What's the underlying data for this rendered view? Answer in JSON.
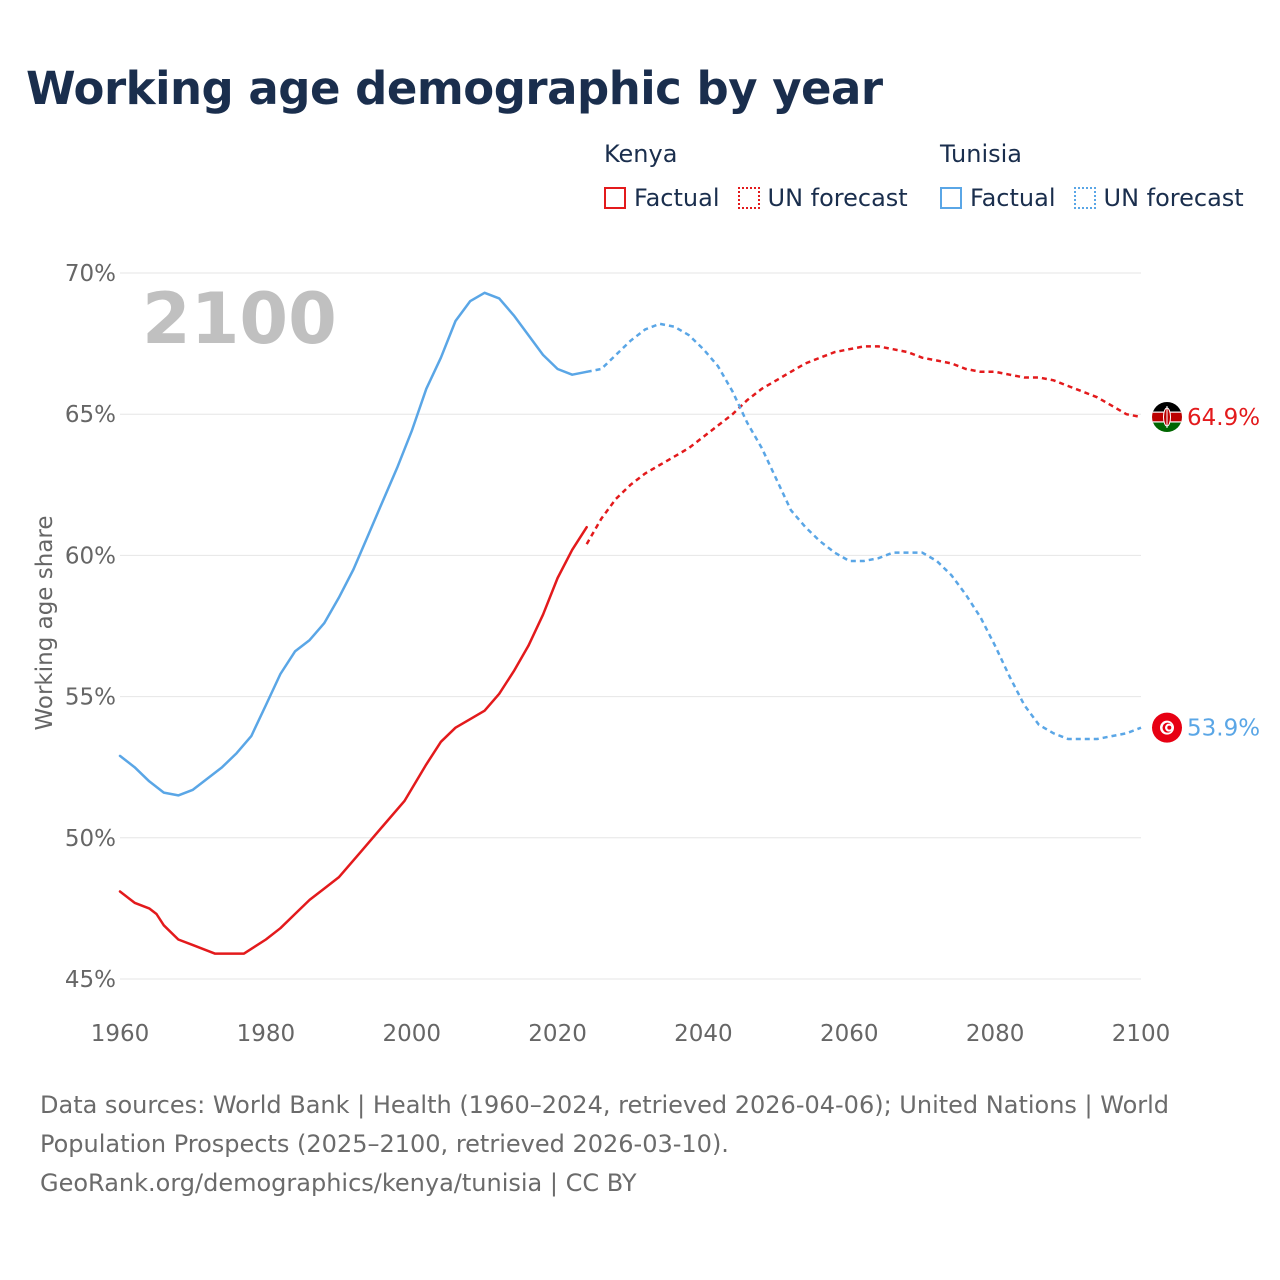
{
  "title": "Working age demographic by year",
  "legend": [
    {
      "name": "Kenya",
      "color": "#e31a1c",
      "items": [
        "Factual",
        "UN forecast"
      ]
    },
    {
      "name": "Tunisia",
      "color": "#5aa6e6",
      "items": [
        "Factual",
        "UN forecast"
      ]
    }
  ],
  "footer": {
    "line1": "Data sources: World Bank | Health (1960–2024, retrieved 2026-04-06); United Nations | World",
    "line2": "Population Prospects (2025–2100, retrieved 2026-03-10).",
    "line3": "GeoRank.org/demographics/kenya/tunisia | CC BY"
  },
  "chart_data": {
    "type": "line",
    "title": "Working age demographic by year",
    "xlabel": "",
    "ylabel": "Working age share",
    "year_watermark": "2100",
    "xlim": [
      1960,
      2100
    ],
    "ylim": [
      45,
      70
    ],
    "x_ticks": [
      1960,
      1980,
      2000,
      2020,
      2040,
      2060,
      2080,
      2100
    ],
    "y_ticks": [
      45,
      50,
      55,
      60,
      65,
      70
    ],
    "y_tick_labels": [
      "45%",
      "50%",
      "55%",
      "60%",
      "65%",
      "70%"
    ],
    "grid": true,
    "legend_position": "top-right",
    "series": [
      {
        "name": "Kenya",
        "color": "#e31a1c",
        "end_label": "64.9%",
        "factual": {
          "x": [
            1960,
            1962,
            1964,
            1965,
            1966,
            1968,
            1970,
            1973,
            1977,
            1980,
            1982,
            1984,
            1986,
            1988,
            1990,
            1993,
            1996,
            1999,
            2002,
            2004,
            2006,
            2008,
            2010,
            2012,
            2014,
            2016,
            2018,
            2020,
            2022,
            2024
          ],
          "y": [
            48.1,
            47.7,
            47.5,
            47.3,
            46.9,
            46.4,
            46.2,
            45.9,
            45.9,
            46.4,
            46.8,
            47.3,
            47.8,
            48.2,
            48.6,
            49.5,
            50.4,
            51.3,
            52.6,
            53.4,
            53.9,
            54.2,
            54.5,
            55.1,
            55.9,
            56.8,
            57.9,
            59.2,
            60.2,
            61.0
          ]
        },
        "forecast": {
          "x": [
            2024,
            2026,
            2028,
            2030,
            2032,
            2034,
            2036,
            2038,
            2040,
            2042,
            2044,
            2046,
            2048,
            2050,
            2052,
            2054,
            2056,
            2058,
            2060,
            2062,
            2064,
            2066,
            2068,
            2070,
            2072,
            2074,
            2076,
            2078,
            2080,
            2082,
            2084,
            2086,
            2088,
            2090,
            2092,
            2094,
            2096,
            2098,
            2100
          ],
          "y": [
            60.4,
            61.3,
            62.0,
            62.5,
            62.9,
            63.2,
            63.5,
            63.8,
            64.2,
            64.6,
            65.0,
            65.5,
            65.9,
            66.2,
            66.5,
            66.8,
            67.0,
            67.2,
            67.3,
            67.4,
            67.4,
            67.3,
            67.2,
            67.0,
            66.9,
            66.8,
            66.6,
            66.5,
            66.5,
            66.4,
            66.3,
            66.3,
            66.2,
            66.0,
            65.8,
            65.6,
            65.3,
            65.0,
            64.9
          ]
        }
      },
      {
        "name": "Tunisia",
        "color": "#5aa6e6",
        "end_label": "53.9%",
        "factual": {
          "x": [
            1960,
            1962,
            1964,
            1966,
            1968,
            1970,
            1972,
            1974,
            1976,
            1978,
            1980,
            1982,
            1984,
            1986,
            1988,
            1990,
            1992,
            1994,
            1996,
            1998,
            2000,
            2002,
            2004,
            2006,
            2008,
            2010,
            2012,
            2014,
            2016,
            2018,
            2020,
            2022,
            2024
          ],
          "y": [
            52.9,
            52.5,
            52.0,
            51.6,
            51.5,
            51.7,
            52.1,
            52.5,
            53.0,
            53.6,
            54.7,
            55.8,
            56.6,
            57.0,
            57.6,
            58.5,
            59.5,
            60.7,
            61.9,
            63.1,
            64.4,
            65.9,
            67.0,
            68.3,
            69.0,
            69.3,
            69.1,
            68.5,
            67.8,
            67.1,
            66.6,
            66.4,
            66.5
          ]
        },
        "forecast": {
          "x": [
            2024,
            2026,
            2028,
            2030,
            2032,
            2034,
            2036,
            2038,
            2040,
            2042,
            2044,
            2046,
            2048,
            2050,
            2052,
            2054,
            2056,
            2058,
            2060,
            2062,
            2064,
            2066,
            2068,
            2070,
            2072,
            2074,
            2076,
            2078,
            2080,
            2082,
            2084,
            2086,
            2088,
            2090,
            2092,
            2094,
            2096,
            2098,
            2100
          ],
          "y": [
            66.5,
            66.6,
            67.1,
            67.6,
            68.0,
            68.2,
            68.1,
            67.8,
            67.3,
            66.7,
            65.8,
            64.7,
            63.8,
            62.7,
            61.6,
            61.0,
            60.5,
            60.1,
            59.8,
            59.8,
            59.9,
            60.1,
            60.1,
            60.1,
            59.8,
            59.3,
            58.6,
            57.8,
            56.8,
            55.7,
            54.7,
            54.0,
            53.7,
            53.5,
            53.5,
            53.5,
            53.6,
            53.7,
            53.9
          ]
        }
      }
    ]
  }
}
